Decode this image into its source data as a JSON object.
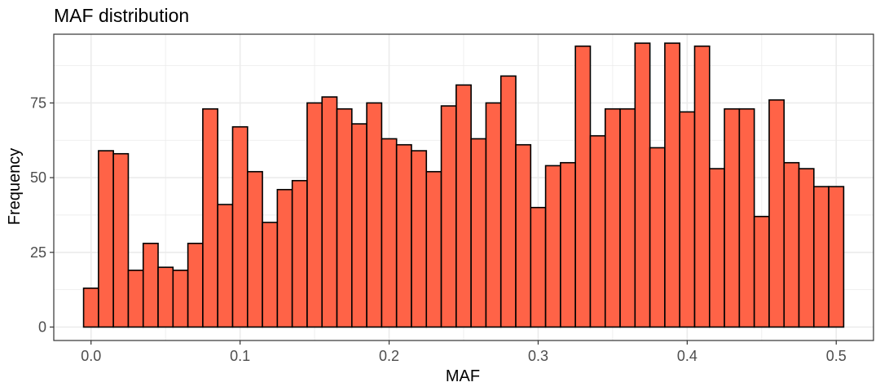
{
  "chart_data": {
    "type": "bar",
    "title": "MAF distribution",
    "xlabel": "MAF",
    "ylabel": "Frequency",
    "xlim": [
      -0.025,
      0.525
    ],
    "ylim": [
      -4.5,
      98
    ],
    "x_ticks": [
      0.0,
      0.1,
      0.2,
      0.3,
      0.4,
      0.5
    ],
    "x_tick_labels": [
      "0.0",
      "0.1",
      "0.2",
      "0.3",
      "0.4",
      "0.5"
    ],
    "y_ticks": [
      0,
      25,
      50,
      75
    ],
    "y_tick_labels": [
      "0",
      "25",
      "50",
      "75"
    ],
    "bin_width": 0.01,
    "x_start": -0.005,
    "values": [
      13,
      59,
      58,
      19,
      28,
      20,
      19,
      28,
      73,
      41,
      67,
      52,
      35,
      46,
      49,
      75,
      77,
      73,
      68,
      75,
      63,
      61,
      59,
      52,
      74,
      81,
      63,
      75,
      84,
      61,
      40,
      54,
      55,
      94,
      64,
      73,
      73,
      95,
      60,
      95,
      72,
      94,
      53,
      73,
      73,
      37,
      76,
      55,
      53,
      47,
      47
    ],
    "grid": true,
    "colors": {
      "bar_fill": "#FF6347",
      "bar_stroke": "#000000",
      "grid": "#ebebeb",
      "panel_border": "#333333"
    }
  }
}
